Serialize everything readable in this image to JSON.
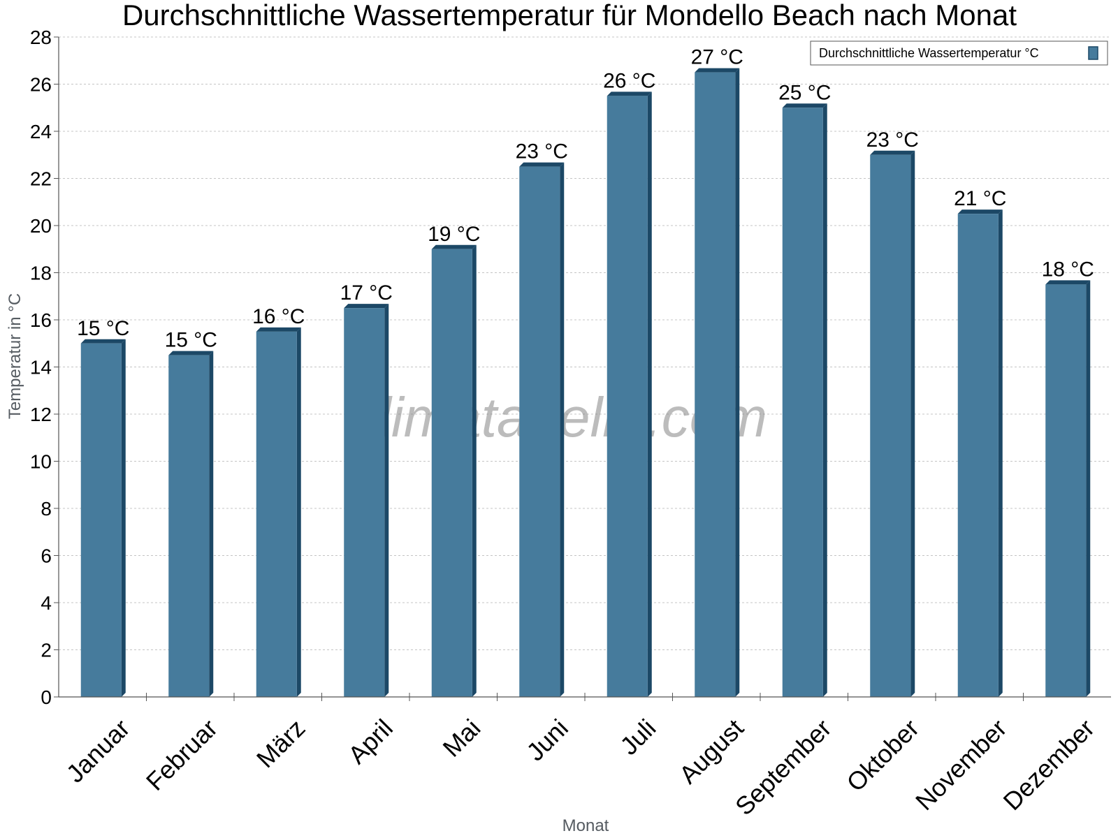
{
  "chart_data": {
    "type": "bar",
    "title": "Durchschnittliche Wassertemperatur für Mondello Beach nach Monat",
    "xlabel": "Monat",
    "ylabel": "Temperatur in °C",
    "ylim": [
      0,
      28
    ],
    "yticks": [
      0,
      2,
      4,
      6,
      8,
      10,
      12,
      14,
      16,
      18,
      20,
      22,
      24,
      26,
      28
    ],
    "grid": true,
    "legend_position": "top-right",
    "categories": [
      "Januar",
      "Februar",
      "März",
      "April",
      "Mai",
      "Juni",
      "Juli",
      "August",
      "September",
      "Oktober",
      "November",
      "Dezember"
    ],
    "series": [
      {
        "name": "Durchschnittliche Wassertemperatur °C",
        "values": [
          15,
          14.5,
          15.5,
          16.5,
          19,
          22.5,
          25.5,
          26.5,
          25,
          23,
          20.5,
          17.5
        ],
        "labels": [
          "15 °C",
          "15 °C",
          "16 °C",
          "17 °C",
          "19 °C",
          "23 °C",
          "26 °C",
          "27 °C",
          "25 °C",
          "23 °C",
          "21 °C",
          "18 °C"
        ]
      }
    ],
    "colors": {
      "bar_front": "#467b9c",
      "bar_side": "#1c4866",
      "grid": "#c4c4c4",
      "axis": "#555555"
    }
  },
  "watermark": "klimatabelle.com"
}
